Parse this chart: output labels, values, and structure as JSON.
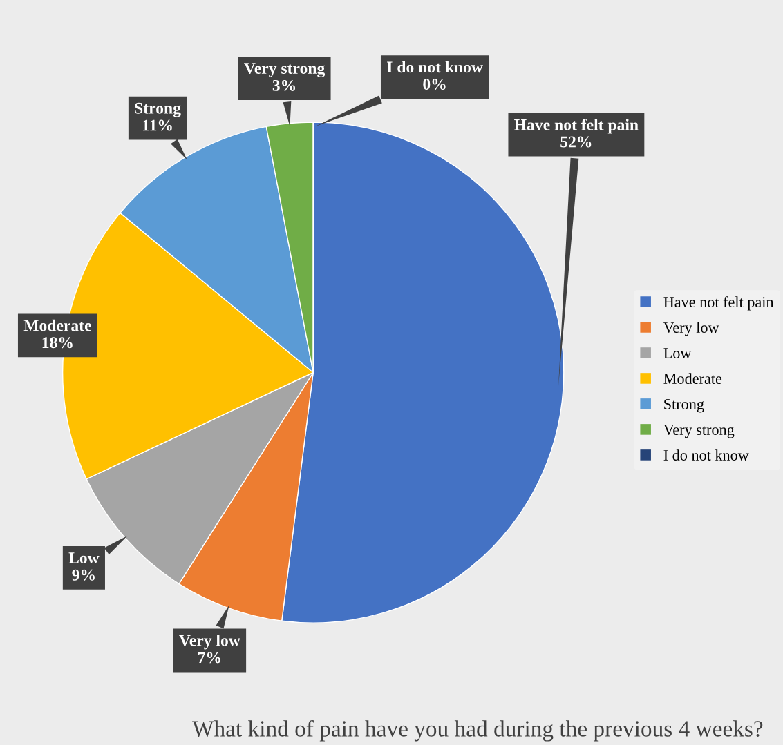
{
  "chart_data": {
    "type": "pie",
    "title": "What kind of pain have you had during the previous 4 weeks?",
    "categories": [
      "Have not felt pain",
      "Very low",
      "Low",
      "Moderate",
      "Strong",
      "Very strong",
      "I do not know"
    ],
    "values": [
      52,
      7,
      9,
      18,
      11,
      3,
      0
    ],
    "colors": [
      "#4472c4",
      "#ed7d31",
      "#a5a5a5",
      "#ffc000",
      "#5b9bd5",
      "#70ad47",
      "#264478"
    ],
    "value_labels": [
      "52%",
      "7%",
      "9%",
      "18%",
      "11%",
      "3%",
      "0%"
    ],
    "legend": "right"
  }
}
